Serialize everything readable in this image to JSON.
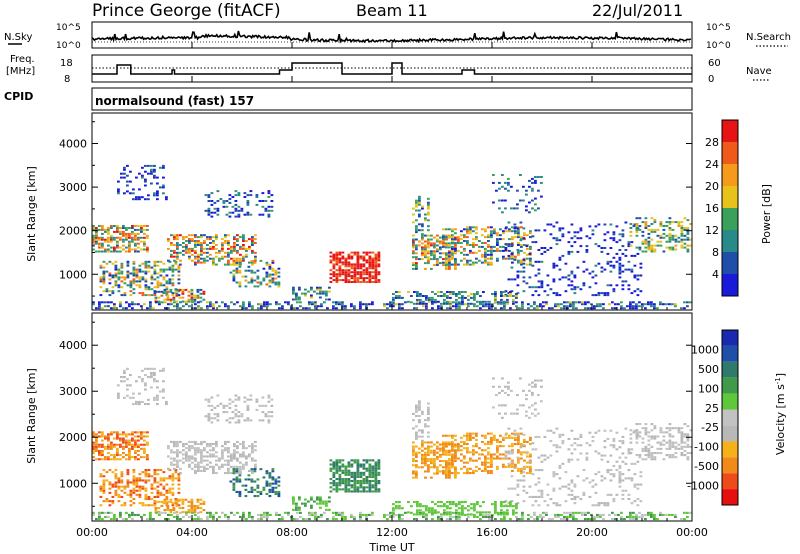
{
  "header": {
    "station": "Prince George (fitACF)",
    "beam": "Beam 11",
    "date": "22/Jul/2011"
  },
  "colors": {
    "power": [
      "#1a1ad9",
      "#1f4fa8",
      "#2a8a8a",
      "#3aa05a",
      "#e6c21a",
      "#f59a1a",
      "#ef5a1a",
      "#e61414"
    ],
    "velocity": [
      "#1a2ab0",
      "#1f4fa8",
      "#2f7a6a",
      "#3f9a4a",
      "#5ec83a",
      "#c2c2c2",
      "#b8b8b8",
      "#f5b01a",
      "#f08a1a",
      "#ef4a1a",
      "#e60f0f"
    ],
    "frame": "#000000"
  },
  "chart_data": [
    {
      "type": "line",
      "name": "sky-noise-panel",
      "left_label": "N.Sky",
      "right_label": "N.Search",
      "ylim_ticks_left": [
        "10^5",
        "10^0"
      ],
      "ylim_ticks_right": [
        "10^5",
        "10^0"
      ],
      "x_range_hours": [
        0,
        24
      ]
    },
    {
      "type": "line",
      "name": "frequency-nave-panel",
      "left_label_1": "Freq.",
      "left_label_2": "[MHz]",
      "right_label": "Nave",
      "ticks_left": [
        "18",
        "8"
      ],
      "ticks_right": [
        "60",
        "0"
      ],
      "x_range_hours": [
        0,
        24
      ]
    },
    {
      "type": "table",
      "name": "cpid-panel",
      "label": "CPID",
      "program": "normalsound (fast) 157"
    },
    {
      "type": "heatmap",
      "name": "power-panel",
      "ylabel": "Slant Range [km]",
      "y_ticks": [
        1000,
        2000,
        3000,
        4000
      ],
      "ylim": [
        180,
        4700
      ],
      "x_range_hours": [
        0,
        24
      ],
      "colorbar_label": "Power [dB]",
      "colorbar_ticks": [
        "4",
        "8",
        "12",
        "16",
        "20",
        "24",
        "28"
      ],
      "colorbar_range": [
        0,
        32
      ]
    },
    {
      "type": "heatmap",
      "name": "velocity-panel",
      "ylabel": "Slant Range [km]",
      "y_ticks": [
        1000,
        2000,
        3000,
        4000
      ],
      "ylim": [
        180,
        4700
      ],
      "x_range_hours": [
        0,
        24
      ],
      "xlabel": "Time UT",
      "x_ticks": [
        "00:00",
        "04:00",
        "08:00",
        "12:00",
        "16:00",
        "20:00",
        "00:00"
      ],
      "colorbar_label": "Velocity [m s^-1]",
      "colorbar_label_main": "Velocity",
      "colorbar_label_unit": "[m s",
      "colorbar_label_exp": "-1",
      "colorbar_label_close": "]",
      "colorbar_ticks": [
        "1000",
        "500",
        "100",
        "25",
        "-25",
        "-100",
        "-500",
        "-1000"
      ]
    }
  ]
}
